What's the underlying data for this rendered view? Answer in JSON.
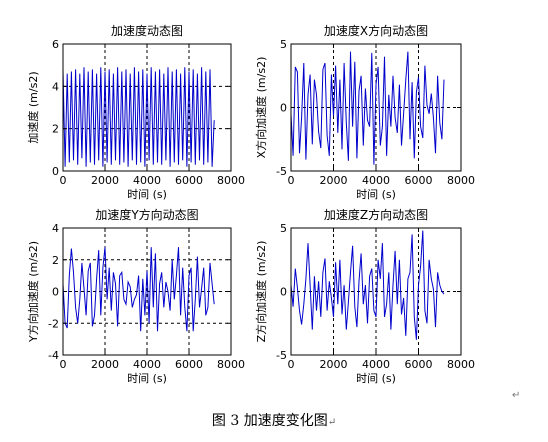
{
  "figure_caption": "图 3  加速度变化图",
  "paragraph_mark": "↵",
  "chart_data": [
    {
      "type": "line",
      "title": "加速度动态图",
      "xlabel": "时间 (s)",
      "ylabel": "加速度 (m/s2)",
      "xlim": [
        0,
        8000
      ],
      "ylim": [
        0,
        6
      ],
      "xticks": [
        0,
        2000,
        4000,
        6000,
        8000
      ],
      "yticks": [
        0,
        2,
        4,
        6
      ],
      "dashed_x": [
        2000,
        4000,
        6000
      ],
      "dashed_y": [
        2,
        4
      ],
      "color": "#0000cc",
      "x": [
        0,
        100,
        200,
        300,
        400,
        500,
        600,
        700,
        800,
        900,
        1000,
        1100,
        1200,
        1300,
        1400,
        1500,
        1600,
        1700,
        1800,
        1900,
        2000,
        2100,
        2200,
        2300,
        2400,
        2500,
        2600,
        2700,
        2800,
        2900,
        3000,
        3100,
        3200,
        3300,
        3400,
        3500,
        3600,
        3700,
        3800,
        3900,
        4000,
        4100,
        4200,
        4300,
        4400,
        4500,
        4600,
        4700,
        4800,
        4900,
        5000,
        5100,
        5200,
        5300,
        5400,
        5500,
        5600,
        5700,
        5800,
        5900,
        6000,
        6100,
        6200,
        6300,
        6400,
        6500,
        6600,
        6700,
        6800,
        6900,
        7000,
        7100,
        7200
      ],
      "values": [
        4.8,
        0.2,
        4.6,
        0.4,
        4.7,
        0.5,
        4.8,
        0.3,
        4.6,
        0.6,
        4.9,
        0.2,
        4.7,
        0.4,
        4.8,
        0.3,
        4.6,
        0.5,
        4.9,
        0.2,
        4.7,
        0.4,
        4.8,
        0.3,
        4.6,
        0.5,
        4.9,
        0.3,
        4.7,
        0.4,
        4.8,
        0.2,
        4.6,
        0.5,
        4.9,
        0.3,
        4.7,
        0.4,
        4.8,
        0.2,
        4.6,
        0.5,
        4.9,
        0.3,
        4.7,
        0.4,
        4.8,
        0.3,
        4.6,
        0.5,
        4.9,
        0.2,
        4.7,
        0.4,
        4.8,
        0.3,
        4.6,
        0.5,
        4.9,
        0.2,
        4.7,
        0.4,
        4.8,
        0.3,
        4.6,
        0.5,
        4.9,
        0.3,
        4.7,
        0.4,
        4.8,
        0.2,
        2.4
      ]
    },
    {
      "type": "line",
      "title": "加速度X方向动态图",
      "xlabel": "时间 (s)",
      "ylabel": "X方向加速度 (m/s2)",
      "xlim": [
        0,
        8000
      ],
      "ylim": [
        -5,
        5
      ],
      "xticks": [
        0,
        2000,
        4000,
        6000,
        8000
      ],
      "yticks": [
        -5,
        0,
        5
      ],
      "dashed_x": [
        2000,
        4000,
        6000
      ],
      "dashed_y": [
        0
      ],
      "color": "#0000cc",
      "x": [
        0,
        100,
        200,
        300,
        400,
        500,
        600,
        700,
        800,
        900,
        1000,
        1100,
        1200,
        1300,
        1400,
        1500,
        1600,
        1700,
        1800,
        1900,
        2000,
        2100,
        2200,
        2300,
        2400,
        2500,
        2600,
        2700,
        2800,
        2900,
        3000,
        3100,
        3200,
        3300,
        3400,
        3500,
        3600,
        3700,
        3800,
        3900,
        4000,
        4100,
        4200,
        4300,
        4400,
        4500,
        4600,
        4700,
        4800,
        4900,
        5000,
        5100,
        5200,
        5300,
        5400,
        5500,
        5600,
        5700,
        5800,
        5900,
        6000,
        6100,
        6200,
        6300,
        6400,
        6500,
        6600,
        6700,
        6800,
        6900,
        7000,
        7100,
        7200
      ],
      "values": [
        -0.5,
        -3.8,
        3.2,
        2.8,
        -3.6,
        -0.8,
        3.5,
        -4.1,
        1.0,
        2.6,
        -2.9,
        2.2,
        1.0,
        -1.9,
        -3.2,
        3.0,
        3.5,
        -2.2,
        -3.8,
        2.6,
        -0.7,
        3.3,
        -2.0,
        2.2,
        -3.3,
        3.5,
        -1.2,
        -4.2,
        4.4,
        -1.5,
        3.6,
        -4.0,
        1.3,
        2.5,
        -3.0,
        1.5,
        -1.0,
        -1.5,
        4.3,
        -4.5,
        1.8,
        3.2,
        -3.0,
        -1.5,
        4.0,
        -3.8,
        1.0,
        -1.5,
        2.5,
        -0.8,
        -2.0,
        1.8,
        -3.0,
        -0.5,
        2.2,
        4.4,
        -2.5,
        2.0,
        -4.0,
        1.2,
        2.4,
        -1.5,
        -2.4,
        3.3,
        0.2,
        -0.5,
        1.1,
        -0.8,
        -3.6,
        2.5,
        -1.2,
        -2.5,
        2.2
      ]
    },
    {
      "type": "line",
      "title": "加速度Y方向动态图",
      "xlabel": "时间 (s)",
      "ylabel": "Y方向加速度 (m/s2)",
      "xlim": [
        0,
        8000
      ],
      "ylim": [
        -4,
        4
      ],
      "xticks": [
        0,
        2000,
        4000,
        6000,
        8000
      ],
      "yticks": [
        -4,
        -2,
        0,
        2,
        4
      ],
      "dashed_x": [
        2000,
        4000,
        6000
      ],
      "dashed_y": [
        -2,
        0,
        2
      ],
      "color": "#0000cc",
      "x": [
        0,
        100,
        200,
        300,
        400,
        500,
        600,
        700,
        800,
        900,
        1000,
        1100,
        1200,
        1300,
        1400,
        1500,
        1600,
        1700,
        1800,
        1900,
        2000,
        2100,
        2200,
        2300,
        2400,
        2500,
        2600,
        2700,
        2800,
        2900,
        3000,
        3100,
        3200,
        3300,
        3400,
        3500,
        3600,
        3700,
        3800,
        3900,
        4000,
        4100,
        4200,
        4300,
        4400,
        4500,
        4600,
        4700,
        4800,
        4900,
        5000,
        5100,
        5200,
        5300,
        5400,
        5500,
        5600,
        5700,
        5800,
        5900,
        6000,
        6100,
        6200,
        6300,
        6400,
        6500,
        6600,
        6700,
        6800,
        6900,
        7000,
        7100,
        7200
      ],
      "values": [
        0.5,
        -2.0,
        -2.3,
        1.0,
        2.7,
        1.2,
        -1.0,
        -2.0,
        -0.5,
        1.8,
        0.2,
        -1.5,
        1.3,
        1.8,
        -2.2,
        -1.5,
        0.8,
        2.6,
        -1.5,
        1.5,
        2.8,
        -0.5,
        1.5,
        -1.2,
        1.2,
        0.5,
        -2.2,
        1.0,
        1.2,
        -0.5,
        -0.8,
        0.6,
        0.3,
        -1.0,
        -0.5,
        -0.2,
        1.0,
        -2.5,
        0.8,
        -1.5,
        1.3,
        -2.0,
        2.8,
        -1.0,
        2.4,
        -2.5,
        0.5,
        1.2,
        -1.0,
        0.6,
        0.0,
        -1.2,
        2.0,
        -0.5,
        1.0,
        2.8,
        -1.5,
        1.5,
        -1.0,
        -2.5,
        1.0,
        1.5,
        -2.5,
        -0.5,
        2.2,
        -1.0,
        0.2,
        1.5,
        -1.5,
        -1.0,
        1.8,
        0.5,
        -0.8
      ]
    },
    {
      "type": "line",
      "title": "加速度Z方向动态图",
      "xlabel": "时间 (s)",
      "ylabel": "Z方向加速度 (m/s2)",
      "xlim": [
        0,
        8000
      ],
      "ylim": [
        -5,
        5
      ],
      "xticks": [
        0,
        2000,
        4000,
        6000,
        8000
      ],
      "yticks": [
        -5,
        0,
        5
      ],
      "dashed_x": [
        2000,
        4000,
        6000
      ],
      "dashed_y": [
        0
      ],
      "color": "#0000cc",
      "x": [
        0,
        100,
        200,
        300,
        400,
        500,
        600,
        700,
        800,
        900,
        1000,
        1100,
        1200,
        1300,
        1400,
        1500,
        1600,
        1700,
        1800,
        1900,
        2000,
        2100,
        2200,
        2300,
        2400,
        2500,
        2600,
        2700,
        2800,
        2900,
        3000,
        3100,
        3200,
        3300,
        3400,
        3500,
        3600,
        3700,
        3800,
        3900,
        4000,
        4100,
        4200,
        4300,
        4400,
        4500,
        4600,
        4700,
        4800,
        4900,
        5000,
        5100,
        5200,
        5300,
        5400,
        5500,
        5600,
        5700,
        5800,
        5900,
        6000,
        6100,
        6200,
        6300,
        6400,
        6500,
        6600,
        6700,
        6800,
        6900,
        7000,
        7100,
        7200
      ],
      "values": [
        0.5,
        -1.2,
        1.8,
        0.3,
        -1.5,
        -2.6,
        -1.0,
        1.0,
        3.8,
        0.5,
        -3.0,
        1.2,
        -1.5,
        0.8,
        -2.0,
        1.5,
        2.6,
        -1.5,
        0.8,
        -0.5,
        -2.0,
        2.3,
        -1.0,
        2.5,
        -1.8,
        0.5,
        -3.0,
        -0.8,
        1.5,
        3.6,
        -1.2,
        -2.8,
        0.8,
        3.0,
        -1.0,
        0.5,
        -2.5,
        1.2,
        1.8,
        -1.5,
        -2.0,
        2.5,
        1.0,
        3.8,
        -2.0,
        -1.0,
        1.5,
        -3.0,
        0.5,
        3.2,
        -1.0,
        2.5,
        -1.8,
        -0.5,
        -3.5,
        1.0,
        1.5,
        4.5,
        -2.0,
        -3.8,
        0.5,
        2.0,
        4.8,
        -1.5,
        -2.5,
        2.5,
        1.0,
        0.2,
        -2.8,
        1.5,
        0.5,
        0.0,
        -0.2
      ]
    }
  ]
}
